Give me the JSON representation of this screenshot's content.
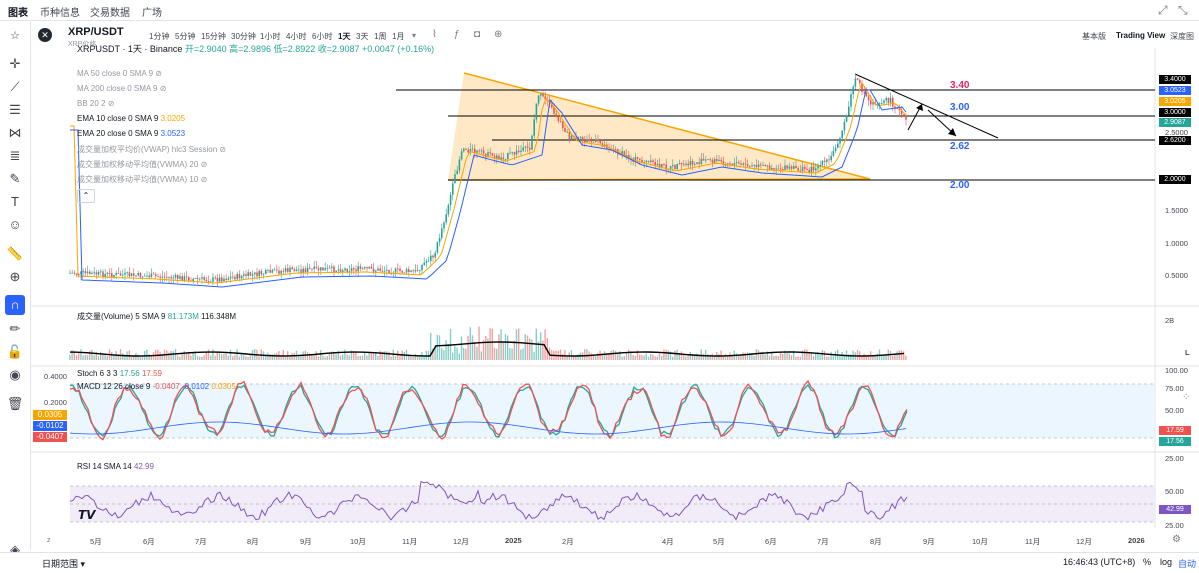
{
  "topnav": {
    "tabs": [
      "图表",
      "币种信息",
      "交易数据",
      "广场"
    ]
  },
  "symbol": {
    "title": "XRP/USDT",
    "subtitle": "XRP价格",
    "legend_title": "XRPUSDT · 1天 · Binance",
    "ohlc": "开=2.9040 高=2.9896 低=2.8922 收=2.9087 +0.0047 (+0.16%)"
  },
  "intervals": [
    "1分钟",
    "5分钟",
    "15分钟",
    "30分钟",
    "1小时",
    "4小时",
    "6小时",
    "1天",
    "3天",
    "1周",
    "1月"
  ],
  "active_interval": "1天",
  "views": [
    "基本版",
    "Trading View",
    "深度图"
  ],
  "indicators": [
    {
      "label": "MA 50 close 0 SMA 9",
      "value": "",
      "visible": false
    },
    {
      "label": "MA 200 close 0 SMA 9",
      "value": "",
      "visible": false
    },
    {
      "label": "BB 20 2",
      "value": "",
      "visible": false
    },
    {
      "label": "EMA 10 close 0 SMA 9",
      "value": "3.0205",
      "color": "#f7a600",
      "visible": true
    },
    {
      "label": "EMA 20 close 0 SMA 9",
      "value": "3.0523",
      "color": "#2962ff",
      "visible": true
    },
    {
      "label": "成交量加权平均价(VWAP) hlc3 Session",
      "value": "",
      "visible": false
    },
    {
      "label": "成交量加权移动平均值(VWMA) 20",
      "value": "",
      "visible": false
    },
    {
      "label": "成交量加权移动平均值(VWMA) 10",
      "value": "",
      "visible": false
    }
  ],
  "volume_legend": {
    "label": "成交量(Volume) 5 SMA 9",
    "v1": "81.173M",
    "v2": "116.348M"
  },
  "stoch_legend": {
    "label": "Stoch 6 3 3",
    "v1": "17.56",
    "v2": "17.59"
  },
  "macd_legend": {
    "label": "MACD 12 26 close 9",
    "v1": "-0.0407",
    "v2": "-0.0102",
    "v3": "0.0305"
  },
  "rsi_legend": {
    "label": "RSI 14 SMA 14",
    "v1": "42.99"
  },
  "price_axis": [
    "3.5000",
    "3.0000",
    "2.5000",
    "2.0000",
    "1.5000",
    "1.0000",
    "0.5000"
  ],
  "price_tags": [
    {
      "value": "3.4000",
      "color": "#000000"
    },
    {
      "value": "3.0523",
      "color": "#2962ff"
    },
    {
      "value": "3.0205",
      "color": "#f7a600"
    },
    {
      "value": "3.0000",
      "color": "#000000"
    },
    {
      "value": "2.9087",
      "color": "#26a69a"
    },
    {
      "value": "2.6200",
      "color": "#000000"
    },
    {
      "value": "2.0000",
      "color": "#000000"
    }
  ],
  "annotations": [
    {
      "text": "3.40",
      "color": "#e91e63"
    },
    {
      "text": "3.00",
      "color": "#2962ff"
    },
    {
      "text": "2.62",
      "color": "#2962ff"
    },
    {
      "text": "2.00",
      "color": "#2962ff"
    }
  ],
  "volume_axis": {
    "top": "2B",
    "tag": "L"
  },
  "osc_axis": [
    "100.00",
    "75.00",
    "50.00",
    "25.00",
    "0.00"
  ],
  "osc_tags": [
    "17.59",
    "17.56"
  ],
  "macd_axis": [
    "0.4000",
    "0.2000",
    "-0.2000"
  ],
  "macd_tags": [
    "0.0305",
    "-0.0102",
    "-0.0407"
  ],
  "rsi_axis": [
    "100.00",
    "75.00",
    "50.00",
    "25.00"
  ],
  "rsi_tag": "42.99",
  "time_axis": [
    "5月",
    "6月",
    "7月",
    "8月",
    "9月",
    "10月",
    "11月",
    "12月",
    "2025",
    "2月",
    "4月",
    "5月",
    "6月",
    "7月",
    "8月",
    "9月",
    "10月",
    "11月",
    "12月",
    "2026"
  ],
  "bottom": {
    "range": "日期范围",
    "time": "16:46:43 (UTC+8)",
    "pct": "%",
    "log": "log",
    "auto": "自动"
  },
  "colors": {
    "up": "#26a69a",
    "down": "#ef5350",
    "triangle": "#f7a600",
    "ema10": "#f7a600",
    "ema20": "#2962ff"
  }
}
